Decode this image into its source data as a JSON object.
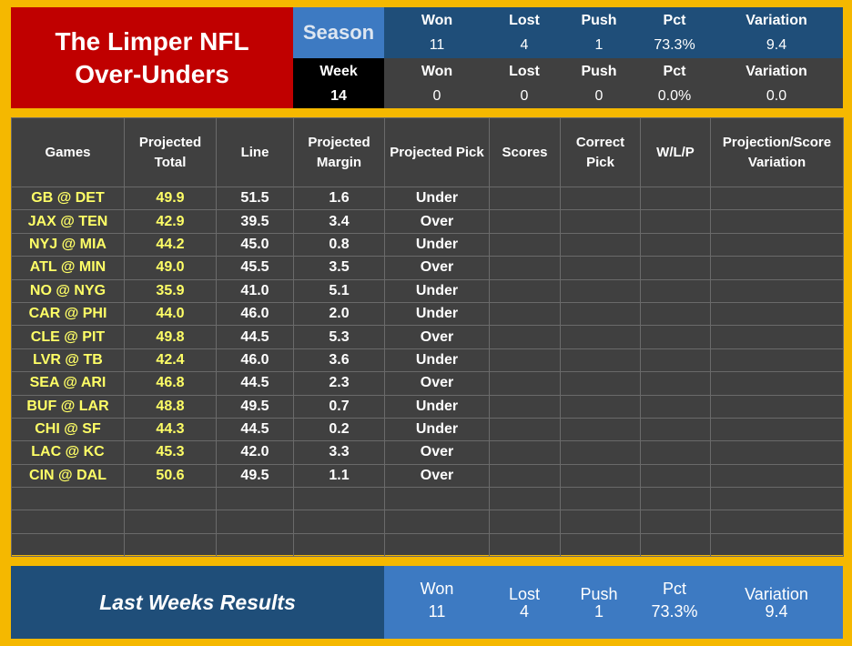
{
  "title": {
    "line1": "The Limper NFL",
    "line2": "Over-Unders"
  },
  "season": {
    "label": "Season",
    "won_label": "Won",
    "won": "11",
    "lost_label": "Lost",
    "lost": "4",
    "push_label": "Push",
    "push": "1",
    "pct_label": "Pct",
    "pct": "73.3%",
    "variation_label": "Variation",
    "variation": "9.4"
  },
  "week": {
    "label": "Week",
    "number": "14",
    "won_label": "Won",
    "won": "0",
    "lost_label": "Lost",
    "lost": "0",
    "push_label": "Push",
    "push": "0",
    "pct_label": "Pct",
    "pct": "0.0%",
    "variation_label": "Variation",
    "variation": "0.0"
  },
  "table": {
    "headers": [
      "Games",
      "Projected Total",
      "Line",
      "Projected Margin",
      "Projected Pick",
      "Scores",
      "Correct Pick",
      "W/L/P",
      "Projection/Score Variation"
    ],
    "rows": [
      [
        "GB @ DET",
        "49.9",
        "51.5",
        "1.6",
        "Under",
        "",
        "",
        "",
        ""
      ],
      [
        "JAX @ TEN",
        "42.9",
        "39.5",
        "3.4",
        "Over",
        "",
        "",
        "",
        ""
      ],
      [
        "NYJ @ MIA",
        "44.2",
        "45.0",
        "0.8",
        "Under",
        "",
        "",
        "",
        ""
      ],
      [
        "ATL @ MIN",
        "49.0",
        "45.5",
        "3.5",
        "Over",
        "",
        "",
        "",
        ""
      ],
      [
        "NO @ NYG",
        "35.9",
        "41.0",
        "5.1",
        "Under",
        "",
        "",
        "",
        ""
      ],
      [
        "CAR @ PHI",
        "44.0",
        "46.0",
        "2.0",
        "Under",
        "",
        "",
        "",
        ""
      ],
      [
        "CLE @ PIT",
        "49.8",
        "44.5",
        "5.3",
        "Over",
        "",
        "",
        "",
        ""
      ],
      [
        "LVR @ TB",
        "42.4",
        "46.0",
        "3.6",
        "Under",
        "",
        "",
        "",
        ""
      ],
      [
        "SEA @ ARI",
        "46.8",
        "44.5",
        "2.3",
        "Over",
        "",
        "",
        "",
        ""
      ],
      [
        "BUF @ LAR",
        "48.8",
        "49.5",
        "0.7",
        "Under",
        "",
        "",
        "",
        ""
      ],
      [
        "CHI @ SF",
        "44.3",
        "44.5",
        "0.2",
        "Under",
        "",
        "",
        "",
        ""
      ],
      [
        "LAC @ KC",
        "45.3",
        "42.0",
        "3.3",
        "Over",
        "",
        "",
        "",
        ""
      ],
      [
        "CIN @ DAL",
        "50.6",
        "49.5",
        "1.1",
        "Over",
        "",
        "",
        "",
        ""
      ],
      [
        "",
        "",
        "",
        "",
        "",
        "",
        "",
        "",
        ""
      ],
      [
        "",
        "",
        "",
        "",
        "",
        "",
        "",
        "",
        ""
      ],
      [
        "",
        "",
        "",
        "",
        "",
        "",
        "",
        "",
        ""
      ]
    ]
  },
  "last_week": {
    "title": "Last Weeks Results",
    "won_label": "Won",
    "won": "11",
    "lost_label": "Lost",
    "lost": "4",
    "push_label": "Push",
    "push": "1",
    "pct_label": "Pct",
    "pct": "73.3%",
    "variation_label": "Variation",
    "variation": "9.4"
  },
  "colors": {
    "title_bg": "#c00000",
    "frame": "#f5b800",
    "dark_blue": "#1f4e79",
    "mid_blue": "#3d7ac2",
    "cell_bg": "#404040",
    "highlight_text": "#ffff66"
  }
}
